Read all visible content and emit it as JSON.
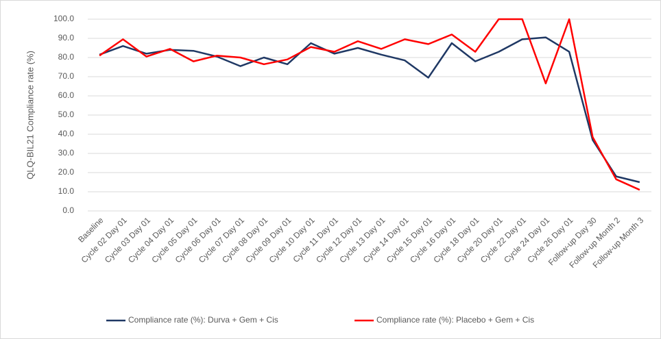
{
  "chart_data": {
    "type": "line",
    "y_label": "QLQ-BIL21 Compliance rate (%)",
    "categories": [
      "Baseline",
      "Cycle 02 Day 01",
      "Cycle 03 Day 01",
      "Cycle 04 Day 01",
      "Cycle 05 Day 01",
      "Cycle 06 Day 01",
      "Cycle 07 Day 01",
      "Cycle 08 Day 01",
      "Cycle 09 Day 01",
      "Cycle 10 Day 01",
      "Cycle 11 Day 01",
      "Cycle 12 Day 01",
      "Cycle 13 Day 01",
      "Cycle 14 Day 01",
      "Cycle 15 Day 01",
      "Cycle 16 Day 01",
      "Cycle 18 Day 01",
      "Cycle 20 Day 01",
      "Cycle 22 Day 01",
      "Cycle 24 Day 01",
      "Cycle 26 Day 01",
      "Follow-up Day 30",
      "Follow-up Month 2",
      "Follow-up Month 3"
    ],
    "series": [
      {
        "name": "Compliance rate (%): Durva + Gem + Cis",
        "color": "#1f3864",
        "values": [
          81.5,
          86,
          82,
          84,
          83.5,
          80.5,
          75.5,
          80,
          76.5,
          87.5,
          82,
          85,
          81.5,
          78.5,
          69.5,
          87.5,
          78,
          83,
          89.5,
          90.5,
          83,
          37,
          18,
          15
        ]
      },
      {
        "name": "Compliance rate (%): Placebo + Gem + Cis",
        "color": "#ff0000",
        "values": [
          81,
          89.5,
          80.5,
          84.5,
          78,
          81,
          80,
          76.5,
          79,
          85.5,
          83,
          88.5,
          84.5,
          89.5,
          87,
          92,
          83,
          100,
          100,
          66.5,
          100,
          38.5,
          16.5,
          11
        ]
      }
    ],
    "ylim": [
      0,
      100
    ],
    "yticks": [
      {
        "value": 0,
        "label": "0.0"
      },
      {
        "value": 10,
        "label": "10.0"
      },
      {
        "value": 20,
        "label": "20.0"
      },
      {
        "value": 30,
        "label": "30.0"
      },
      {
        "value": 40,
        "label": "40.0"
      },
      {
        "value": 50,
        "label": "50.0"
      },
      {
        "value": 60,
        "label": "60.0"
      },
      {
        "value": 70,
        "label": "70.0"
      },
      {
        "value": 80,
        "label": "80.0"
      },
      {
        "value": 90,
        "label": "90.0"
      },
      {
        "value": 100,
        "label": "100.0"
      }
    ],
    "grid": true,
    "legend": "bottom"
  }
}
